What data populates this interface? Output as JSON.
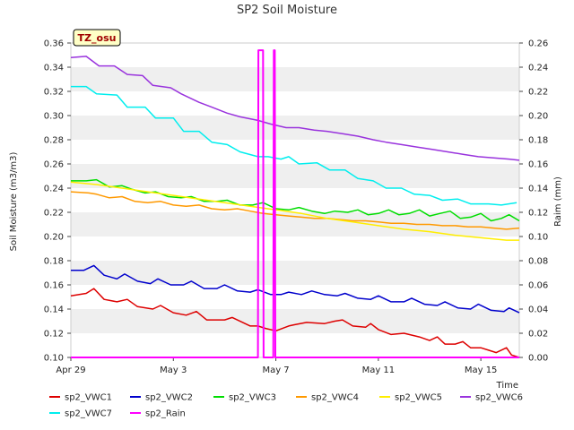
{
  "chart_data": {
    "type": "line",
    "title": "SP2 Soil Moisture",
    "badge": "TZ_osu",
    "ylabel": "Soil Moisture (m3/m3)",
    "y2label": "Raim (mm)",
    "xlabel": "Time",
    "xlim": [
      0,
      17.5
    ],
    "x_ticks": [
      {
        "value": 0,
        "label": "Apr 29"
      },
      {
        "value": 4,
        "label": "May 3"
      },
      {
        "value": 8,
        "label": "May 7"
      },
      {
        "value": 12,
        "label": "May 11"
      },
      {
        "value": 16,
        "label": "May 15"
      }
    ],
    "ylim": [
      0.1,
      0.36
    ],
    "y_ticks": [
      "0.10",
      "0.12",
      "0.14",
      "0.16",
      "0.18",
      "0.20",
      "0.22",
      "0.24",
      "0.26",
      "0.28",
      "0.30",
      "0.32",
      "0.34",
      "0.36"
    ],
    "y2lim": [
      0.0,
      0.26
    ],
    "y2_ticks": [
      "0.00",
      "0.02",
      "0.04",
      "0.06",
      "0.08",
      "0.10",
      "0.12",
      "0.14",
      "0.16",
      "0.18",
      "0.20",
      "0.22",
      "0.24",
      "0.26"
    ],
    "grid": "horizontal-bands",
    "legend_position": "bottom",
    "series": [
      {
        "name": "sp2_VWC1",
        "color": "#dd0000",
        "axis": "left",
        "points": [
          [
            0,
            0.151
          ],
          [
            0.6,
            0.153
          ],
          [
            0.9,
            0.157
          ],
          [
            1.3,
            0.148
          ],
          [
            1.8,
            0.146
          ],
          [
            2.2,
            0.148
          ],
          [
            2.6,
            0.142
          ],
          [
            3.2,
            0.14
          ],
          [
            3.5,
            0.143
          ],
          [
            4.0,
            0.137
          ],
          [
            4.5,
            0.135
          ],
          [
            4.9,
            0.138
          ],
          [
            5.3,
            0.131
          ],
          [
            6.0,
            0.131
          ],
          [
            6.3,
            0.133
          ],
          [
            7.0,
            0.126
          ],
          [
            7.3,
            0.126
          ],
          [
            7.6,
            0.124
          ],
          [
            8.0,
            0.122
          ],
          [
            8.5,
            0.126
          ],
          [
            8.7,
            0.127
          ],
          [
            9.2,
            0.129
          ],
          [
            9.9,
            0.128
          ],
          [
            10.3,
            0.13
          ],
          [
            10.6,
            0.131
          ],
          [
            11.0,
            0.126
          ],
          [
            11.5,
            0.125
          ],
          [
            11.7,
            0.128
          ],
          [
            12.0,
            0.123
          ],
          [
            12.5,
            0.119
          ],
          [
            13.0,
            0.12
          ],
          [
            13.6,
            0.117
          ],
          [
            14.0,
            0.114
          ],
          [
            14.3,
            0.117
          ],
          [
            14.6,
            0.111
          ],
          [
            15.0,
            0.111
          ],
          [
            15.3,
            0.113
          ],
          [
            15.6,
            0.108
          ],
          [
            16.0,
            0.108
          ],
          [
            16.3,
            0.106
          ],
          [
            16.6,
            0.104
          ],
          [
            17.0,
            0.108
          ],
          [
            17.2,
            0.102
          ],
          [
            17.5,
            0.1
          ]
        ]
      },
      {
        "name": "sp2_VWC2",
        "color": "#0000cc",
        "axis": "left",
        "points": [
          [
            0,
            0.172
          ],
          [
            0.5,
            0.172
          ],
          [
            0.9,
            0.176
          ],
          [
            1.3,
            0.168
          ],
          [
            1.8,
            0.165
          ],
          [
            2.1,
            0.169
          ],
          [
            2.6,
            0.163
          ],
          [
            3.1,
            0.161
          ],
          [
            3.4,
            0.165
          ],
          [
            3.9,
            0.16
          ],
          [
            4.4,
            0.16
          ],
          [
            4.7,
            0.163
          ],
          [
            5.2,
            0.157
          ],
          [
            5.7,
            0.157
          ],
          [
            6.0,
            0.16
          ],
          [
            6.5,
            0.155
          ],
          [
            7.0,
            0.154
          ],
          [
            7.3,
            0.156
          ],
          [
            7.8,
            0.152
          ],
          [
            8.2,
            0.152
          ],
          [
            8.5,
            0.154
          ],
          [
            9.0,
            0.152
          ],
          [
            9.4,
            0.155
          ],
          [
            9.9,
            0.152
          ],
          [
            10.4,
            0.151
          ],
          [
            10.7,
            0.153
          ],
          [
            11.2,
            0.149
          ],
          [
            11.7,
            0.148
          ],
          [
            12.0,
            0.151
          ],
          [
            12.5,
            0.146
          ],
          [
            13.0,
            0.146
          ],
          [
            13.3,
            0.149
          ],
          [
            13.8,
            0.144
          ],
          [
            14.3,
            0.143
          ],
          [
            14.6,
            0.146
          ],
          [
            15.1,
            0.141
          ],
          [
            15.6,
            0.14
          ],
          [
            15.9,
            0.144
          ],
          [
            16.4,
            0.139
          ],
          [
            16.9,
            0.138
          ],
          [
            17.1,
            0.141
          ],
          [
            17.5,
            0.137
          ]
        ]
      },
      {
        "name": "sp2_VWC3",
        "color": "#00dd00",
        "axis": "left",
        "points": [
          [
            0,
            0.246
          ],
          [
            0.6,
            0.246
          ],
          [
            1.0,
            0.247
          ],
          [
            1.5,
            0.241
          ],
          [
            2.0,
            0.242
          ],
          [
            2.4,
            0.239
          ],
          [
            2.9,
            0.236
          ],
          [
            3.3,
            0.237
          ],
          [
            3.8,
            0.233
          ],
          [
            4.3,
            0.232
          ],
          [
            4.7,
            0.233
          ],
          [
            5.2,
            0.229
          ],
          [
            5.7,
            0.229
          ],
          [
            6.1,
            0.23
          ],
          [
            6.6,
            0.226
          ],
          [
            7.1,
            0.226
          ],
          [
            7.5,
            0.228
          ],
          [
            8.0,
            0.223
          ],
          [
            8.5,
            0.222
          ],
          [
            8.9,
            0.224
          ],
          [
            9.4,
            0.221
          ],
          [
            9.9,
            0.219
          ],
          [
            10.3,
            0.221
          ],
          [
            10.8,
            0.22
          ],
          [
            11.2,
            0.222
          ],
          [
            11.6,
            0.218
          ],
          [
            12.0,
            0.219
          ],
          [
            12.4,
            0.222
          ],
          [
            12.8,
            0.218
          ],
          [
            13.2,
            0.219
          ],
          [
            13.6,
            0.222
          ],
          [
            14.0,
            0.217
          ],
          [
            14.4,
            0.219
          ],
          [
            14.8,
            0.221
          ],
          [
            15.2,
            0.215
          ],
          [
            15.6,
            0.216
          ],
          [
            16.0,
            0.219
          ],
          [
            16.4,
            0.213
          ],
          [
            16.8,
            0.215
          ],
          [
            17.1,
            0.218
          ],
          [
            17.5,
            0.213
          ]
        ]
      },
      {
        "name": "sp2_VWC4",
        "color": "#ff9900",
        "axis": "left",
        "points": [
          [
            0,
            0.237
          ],
          [
            0.7,
            0.236
          ],
          [
            1.0,
            0.235
          ],
          [
            1.5,
            0.232
          ],
          [
            2.0,
            0.233
          ],
          [
            2.5,
            0.229
          ],
          [
            3.0,
            0.228
          ],
          [
            3.5,
            0.229
          ],
          [
            4.0,
            0.226
          ],
          [
            4.5,
            0.225
          ],
          [
            5.0,
            0.226
          ],
          [
            5.5,
            0.223
          ],
          [
            6.0,
            0.222
          ],
          [
            6.5,
            0.223
          ],
          [
            7.0,
            0.221
          ],
          [
            7.5,
            0.219
          ],
          [
            8.0,
            0.218
          ],
          [
            8.5,
            0.217
          ],
          [
            9.0,
            0.216
          ],
          [
            9.5,
            0.215
          ],
          [
            10.0,
            0.215
          ],
          [
            10.5,
            0.214
          ],
          [
            11.0,
            0.213
          ],
          [
            11.5,
            0.213
          ],
          [
            12.0,
            0.212
          ],
          [
            12.5,
            0.211
          ],
          [
            13.0,
            0.211
          ],
          [
            13.5,
            0.21
          ],
          [
            14.0,
            0.21
          ],
          [
            14.5,
            0.209
          ],
          [
            15.0,
            0.209
          ],
          [
            15.5,
            0.208
          ],
          [
            16.0,
            0.208
          ],
          [
            16.5,
            0.207
          ],
          [
            17.0,
            0.206
          ],
          [
            17.5,
            0.207
          ]
        ]
      },
      {
        "name": "sp2_VWC5",
        "color": "#ffee00",
        "axis": "left",
        "points": [
          [
            0,
            0.245
          ],
          [
            1.0,
            0.243
          ],
          [
            2.0,
            0.24
          ],
          [
            3.0,
            0.237
          ],
          [
            4.0,
            0.234
          ],
          [
            5.0,
            0.231
          ],
          [
            6.0,
            0.228
          ],
          [
            7.0,
            0.225
          ],
          [
            8.0,
            0.222
          ],
          [
            9.0,
            0.219
          ],
          [
            10.0,
            0.215
          ],
          [
            11.0,
            0.212
          ],
          [
            12.0,
            0.209
          ],
          [
            13.0,
            0.206
          ],
          [
            14.0,
            0.204
          ],
          [
            15.0,
            0.201
          ],
          [
            16.0,
            0.199
          ],
          [
            17.0,
            0.197
          ],
          [
            17.5,
            0.197
          ]
        ]
      },
      {
        "name": "sp2_VWC6",
        "color": "#9933dd",
        "axis": "left",
        "points": [
          [
            0,
            0.348
          ],
          [
            0.6,
            0.349
          ],
          [
            1.1,
            0.341
          ],
          [
            1.7,
            0.341
          ],
          [
            2.2,
            0.334
          ],
          [
            2.8,
            0.333
          ],
          [
            3.2,
            0.325
          ],
          [
            3.9,
            0.323
          ],
          [
            4.3,
            0.318
          ],
          [
            5.0,
            0.311
          ],
          [
            5.5,
            0.307
          ],
          [
            6.1,
            0.302
          ],
          [
            6.6,
            0.299
          ],
          [
            7.3,
            0.296
          ],
          [
            7.8,
            0.293
          ],
          [
            8.4,
            0.29
          ],
          [
            8.9,
            0.29
          ],
          [
            9.5,
            0.288
          ],
          [
            10.0,
            0.287
          ],
          [
            10.6,
            0.285
          ],
          [
            11.2,
            0.283
          ],
          [
            11.8,
            0.28
          ],
          [
            12.3,
            0.278
          ],
          [
            12.9,
            0.276
          ],
          [
            13.5,
            0.274
          ],
          [
            14.1,
            0.272
          ],
          [
            14.7,
            0.27
          ],
          [
            15.3,
            0.268
          ],
          [
            15.9,
            0.266
          ],
          [
            16.5,
            0.265
          ],
          [
            17.1,
            0.264
          ],
          [
            17.5,
            0.263
          ]
        ]
      },
      {
        "name": "sp2_VWC7",
        "color": "#00eeee",
        "axis": "left",
        "points": [
          [
            0,
            0.324
          ],
          [
            0.6,
            0.324
          ],
          [
            1.0,
            0.318
          ],
          [
            1.8,
            0.317
          ],
          [
            2.2,
            0.307
          ],
          [
            2.9,
            0.307
          ],
          [
            3.3,
            0.298
          ],
          [
            4.0,
            0.298
          ],
          [
            4.4,
            0.287
          ],
          [
            5.0,
            0.287
          ],
          [
            5.5,
            0.278
          ],
          [
            6.1,
            0.276
          ],
          [
            6.6,
            0.27
          ],
          [
            7.3,
            0.266
          ],
          [
            7.7,
            0.266
          ],
          [
            8.2,
            0.264
          ],
          [
            8.5,
            0.266
          ],
          [
            8.9,
            0.26
          ],
          [
            9.6,
            0.261
          ],
          [
            10.1,
            0.255
          ],
          [
            10.7,
            0.255
          ],
          [
            11.2,
            0.248
          ],
          [
            11.8,
            0.246
          ],
          [
            12.3,
            0.24
          ],
          [
            12.9,
            0.24
          ],
          [
            13.4,
            0.235
          ],
          [
            14.0,
            0.234
          ],
          [
            14.5,
            0.23
          ],
          [
            15.1,
            0.231
          ],
          [
            15.6,
            0.227
          ],
          [
            16.3,
            0.227
          ],
          [
            16.8,
            0.226
          ],
          [
            17.4,
            0.228
          ]
        ]
      },
      {
        "name": "sp2_Rain",
        "color": "#ff00ff",
        "axis": "right",
        "points": [
          [
            0,
            0
          ],
          [
            7.3,
            0
          ],
          [
            7.32,
            0.254
          ],
          [
            7.5,
            0.254
          ],
          [
            7.52,
            0
          ],
          [
            7.9,
            0
          ],
          [
            7.92,
            0.254
          ],
          [
            7.96,
            0.254
          ],
          [
            7.98,
            0
          ],
          [
            17.5,
            0
          ]
        ]
      }
    ]
  }
}
